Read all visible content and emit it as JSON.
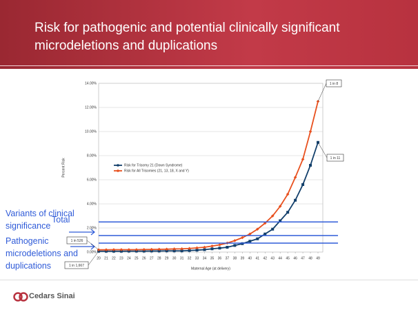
{
  "header": {
    "title": "Risk for pathogenic and potential clinically significant microdeletions and duplications"
  },
  "chart_data": {
    "type": "line",
    "xlabel": "Maternal Age (at delivery)",
    "ylabel": "Percent Risk",
    "categories": [
      "20",
      "21",
      "22",
      "23",
      "24",
      "25",
      "26",
      "27",
      "28",
      "29",
      "30",
      "31",
      "32",
      "33",
      "34",
      "35",
      "36",
      "37",
      "38",
      "39",
      "40",
      "41",
      "42",
      "43",
      "44",
      "45",
      "46",
      "47",
      "48",
      "49"
    ],
    "series": [
      {
        "name": "Risk for Trisomy 21 (Down Syndrome)",
        "color": "#123f6b",
        "marker": "square",
        "values": [
          0.07,
          0.07,
          0.07,
          0.07,
          0.08,
          0.08,
          0.08,
          0.09,
          0.09,
          0.1,
          0.1,
          0.1,
          0.13,
          0.16,
          0.2,
          0.27,
          0.33,
          0.4,
          0.55,
          0.7,
          0.9,
          1.1,
          1.5,
          1.9,
          2.6,
          3.3,
          4.3,
          5.6,
          7.2,
          9.1
        ]
      },
      {
        "name": "Risk for All Trisomies (21, 13, 18, X and Y)",
        "color": "#e8501e",
        "marker": "diamond",
        "values": [
          0.19,
          0.19,
          0.2,
          0.2,
          0.2,
          0.2,
          0.21,
          0.22,
          0.23,
          0.24,
          0.26,
          0.27,
          0.3,
          0.35,
          0.4,
          0.5,
          0.6,
          0.75,
          0.95,
          1.2,
          1.5,
          1.9,
          2.4,
          3.0,
          3.8,
          4.8,
          6.2,
          7.7,
          10.0,
          12.5
        ]
      }
    ],
    "ylim": [
      0,
      14
    ],
    "yticks": [
      {
        "value": 0,
        "label": "0.00%"
      },
      {
        "value": 2,
        "label": "2.00%"
      },
      {
        "value": 4,
        "label": "4.00%"
      },
      {
        "value": 6,
        "label": "6.00%"
      },
      {
        "value": 8,
        "label": "8.00%"
      },
      {
        "value": 10,
        "label": "10.00%"
      },
      {
        "value": 12,
        "label": "12.00%"
      },
      {
        "value": 14,
        "label": "14.00%"
      }
    ],
    "grid": true,
    "reference_lines": {
      "color": "#2f5bd8",
      "values": [
        2.5,
        1.37,
        0.74
      ]
    },
    "annotations": [
      "1 in 8",
      "1 in 11",
      "1 in 526",
      "1 in 1,667"
    ],
    "side_labels": [
      "Variants of clinical significance",
      "Total",
      "Pathogenic microdeletions and duplications"
    ]
  },
  "footer": {
    "logo": "Cedars Sinai"
  }
}
